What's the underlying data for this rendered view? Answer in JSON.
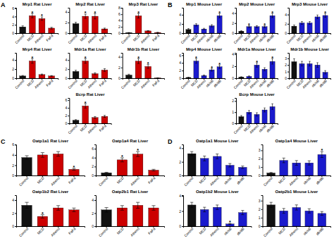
{
  "chart_data": [
    {
      "type": "bar",
      "title": "Mrp1 Rat Liver",
      "categories": [
        "Control",
        "MCD",
        "Athens",
        "FaFa"
      ],
      "values": [
        1.5,
        4.2,
        3.5,
        1.2
      ],
      "errors": [
        0.25,
        0.5,
        0.4,
        0.2
      ],
      "colors": [
        "#111111",
        "#cc0000",
        "#cc0000",
        "#cc0000"
      ],
      "ylim": [
        0,
        6.11
      ],
      "yticks": [
        0,
        2,
        4,
        6
      ],
      "annotations": [
        {
          "text": "A"
        },
        {
          "text": "*",
          "x": "MCD"
        },
        {
          "text": "*",
          "x": "Athens"
        }
      ]
    },
    {
      "type": "bar",
      "title": "Mrp2 Rat Liver",
      "categories": [
        "Control",
        "MCD",
        "Athens",
        "FaFa"
      ],
      "values": [
        1.8,
        3.2,
        3.2,
        0.8
      ],
      "errors": [
        0.25,
        0.4,
        0.5,
        0.15
      ],
      "colors": [
        "#111111",
        "#cc0000",
        "#cc0000",
        "#cc0000"
      ],
      "ylim": [
        0,
        4.81
      ],
      "yticks": [
        0,
        2,
        4
      ],
      "annotations": [
        {
          "text": "*",
          "x": "MCD"
        },
        {
          "text": "*",
          "x": "Athens"
        }
      ]
    },
    {
      "type": "bar",
      "title": "Mrp3 Rat Liver",
      "categories": [
        "Control",
        "MCD",
        "Athens",
        "FaFa"
      ],
      "values": [
        0.15,
        5.5,
        0.7,
        0.2
      ],
      "errors": [
        0.03,
        0.7,
        0.1,
        0.05
      ],
      "colors": [
        "#111111",
        "#cc0000",
        "#cc0000",
        "#cc0000"
      ],
      "ylim": [
        0,
        8.06
      ],
      "yticks": [
        0,
        2,
        4,
        6,
        8
      ],
      "annotations": [
        {
          "text": "*",
          "x": "MCD"
        }
      ]
    },
    {
      "type": "bar",
      "title": "Mrp4 Rat Liver",
      "categories": [
        "Control",
        "MCD",
        "Athens",
        "FaFa"
      ],
      "values": [
        0.5,
        3.8,
        0.8,
        0.5
      ],
      "errors": [
        0.1,
        0.5,
        0.12,
        0.08
      ],
      "colors": [
        "#111111",
        "#cc0000",
        "#cc0000",
        "#cc0000"
      ],
      "ylim": [
        0,
        5.59
      ],
      "yticks": [
        0,
        2,
        4
      ],
      "annotations": [
        {
          "text": "*",
          "x": "MCD"
        }
      ]
    },
    {
      "type": "bar",
      "title": "Mdr1a Rat Liver",
      "categories": [
        "Control",
        "MCD",
        "Athens",
        "FaFa"
      ],
      "values": [
        1.5,
        3.8,
        1.0,
        1.8
      ],
      "errors": [
        0.25,
        0.5,
        0.2,
        0.3
      ],
      "colors": [
        "#111111",
        "#cc0000",
        "#cc0000",
        "#cc0000"
      ],
      "ylim": [
        0,
        5.59
      ],
      "yticks": [
        0,
        2,
        4
      ],
      "annotations": [
        {
          "text": "*",
          "x": "MCD"
        }
      ]
    },
    {
      "type": "bar",
      "title": "Mdr1b Rat Liver",
      "categories": [
        "Control",
        "MCD",
        "Athens",
        "FaFa"
      ],
      "values": [
        0.6,
        3.2,
        2.2,
        0.05
      ],
      "errors": [
        0.15,
        0.45,
        0.35,
        0.02
      ],
      "colors": [
        "#111111",
        "#cc0000",
        "#cc0000",
        "#cc0000"
      ],
      "ylim": [
        0,
        4.745
      ],
      "yticks": [
        0,
        2,
        4
      ],
      "annotations": [
        {
          "text": "*",
          "x": "MCD"
        },
        {
          "text": "*",
          "x": "Athens"
        }
      ]
    },
    {
      "type": "bar",
      "title": "Bcrp Rat Liver",
      "categories": [
        "Control",
        "MCD",
        "Athens",
        "FaFa"
      ],
      "values": [
        0.8,
        4.5,
        1.5,
        1.8
      ],
      "errors": [
        0.15,
        0.55,
        0.25,
        0.25
      ],
      "colors": [
        "#111111",
        "#cc0000",
        "#cc0000",
        "#cc0000"
      ],
      "ylim": [
        0,
        6.565
      ],
      "yticks": [
        0,
        2,
        4,
        6
      ],
      "annotations": [
        {
          "text": "*",
          "x": "MCD"
        }
      ]
    },
    {
      "type": "bar",
      "title": "Mrp1 Mouse Liver",
      "categories": [
        "Control",
        "MCD",
        "Athens",
        "ob/ob",
        "db/db"
      ],
      "values": [
        0.8,
        1.8,
        0.9,
        1.6,
        3.8
      ],
      "errors": [
        0.2,
        0.25,
        0.15,
        0.25,
        0.45
      ],
      "colors": [
        "#111111",
        "#1a1acc",
        "#1a1acc",
        "#1a1acc",
        "#1a1acc"
      ],
      "ylim": [
        0,
        5.525
      ],
      "yticks": [
        0,
        2,
        4
      ],
      "annotations": [
        {
          "text": "B"
        },
        {
          "text": "*",
          "x": "db/db"
        }
      ]
    },
    {
      "type": "bar",
      "title": "Mrp2 Mouse Liver",
      "categories": [
        "Control",
        "MCD",
        "Athens",
        "ob/ob",
        "db/db"
      ],
      "values": [
        0.4,
        1.3,
        1.3,
        1.3,
        3.5
      ],
      "errors": [
        0.08,
        0.2,
        0.2,
        0.2,
        0.4
      ],
      "colors": [
        "#111111",
        "#1a1acc",
        "#1a1acc",
        "#1a1acc",
        "#1a1acc"
      ],
      "ylim": [
        0,
        5.07
      ],
      "yticks": [
        0,
        2,
        4
      ],
      "annotations": [
        {
          "text": "*",
          "x": "MCD"
        },
        {
          "text": "*",
          "x": "ob/ob"
        },
        {
          "text": "*",
          "x": "db/db"
        }
      ]
    },
    {
      "type": "bar",
      "title": "Mrp3 Mouse Liver",
      "categories": [
        "Control",
        "MCD",
        "Athens",
        "ob/ob",
        "db/db"
      ],
      "values": [
        1.5,
        2.2,
        2.2,
        3.5,
        3.8
      ],
      "errors": [
        0.25,
        0.3,
        0.3,
        0.4,
        0.4
      ],
      "colors": [
        "#111111",
        "#1a1acc",
        "#1a1acc",
        "#1a1acc",
        "#1a1acc"
      ],
      "ylim": [
        0,
        5.46
      ],
      "yticks": [
        0,
        2,
        4
      ],
      "annotations": [
        {
          "text": "*",
          "x": "db/db"
        }
      ]
    },
    {
      "type": "bar",
      "title": "Mrp4 Mouse Liver",
      "categories": [
        "Control",
        "MCD",
        "Athens",
        "ob/ob",
        "db/db"
      ],
      "values": [
        0.2,
        4.5,
        0.7,
        2.2,
        3.0
      ],
      "errors": [
        0.05,
        0.6,
        0.15,
        0.35,
        0.45
      ],
      "colors": [
        "#111111",
        "#1a1acc",
        "#1a1acc",
        "#1a1acc",
        "#1a1acc"
      ],
      "ylim": [
        0,
        6.63
      ],
      "yticks": [
        0,
        2,
        4,
        6
      ],
      "annotations": [
        {
          "text": "*",
          "x": "MCD"
        },
        {
          "text": "*",
          "x": "ob/ob"
        },
        {
          "text": "*",
          "x": "db/db"
        }
      ]
    },
    {
      "type": "bar",
      "title": "Mdr1a Mouse Liver",
      "categories": [
        "Control",
        "MCD",
        "Athens",
        "ob/ob",
        "db/db"
      ],
      "values": [
        0.2,
        0.3,
        2.2,
        1.5,
        2.8
      ],
      "errors": [
        0.05,
        0.08,
        0.35,
        0.25,
        0.45
      ],
      "colors": [
        "#111111",
        "#1a1acc",
        "#1a1acc",
        "#1a1acc",
        "#1a1acc"
      ],
      "ylim": [
        0,
        4.225
      ],
      "yticks": [
        0,
        2,
        4
      ],
      "annotations": [
        {
          "text": "*",
          "x": "Athens"
        },
        {
          "text": "*",
          "x": "db/db"
        }
      ]
    },
    {
      "type": "bar",
      "title": "Mdr1b Mouse Liver",
      "categories": [
        "Control",
        "MCD",
        "Athens",
        "ob/ob",
        "db/db"
      ],
      "values": [
        2.5,
        2.2,
        2.2,
        2.0,
        0.9
      ],
      "errors": [
        0.45,
        0.35,
        0.35,
        0.35,
        0.25
      ],
      "colors": [
        "#111111",
        "#1a1acc",
        "#1a1acc",
        "#1a1acc",
        "#1a1acc"
      ],
      "ylim": [
        0,
        3.835
      ],
      "yticks": [
        0,
        1,
        2,
        3
      ]
    },
    {
      "type": "bar",
      "title": "Bcrp Mouse Liver",
      "categories": [
        "Control",
        "MCD",
        "Athens",
        "ob/ob",
        "db/db"
      ],
      "values": [
        0.6,
        1.0,
        0.8,
        1.2,
        1.5
      ],
      "errors": [
        0.1,
        0.15,
        0.15,
        0.18,
        0.25
      ],
      "colors": [
        "#111111",
        "#1a1acc",
        "#1a1acc",
        "#1a1acc",
        "#1a1acc"
      ],
      "ylim": [
        0,
        2.275
      ],
      "yticks": [
        0,
        1,
        2
      ]
    },
    {
      "type": "bar",
      "title": "Oatp1a1 Rat Liver",
      "categories": [
        "Control",
        "MCD",
        "Athens",
        "FaFa"
      ],
      "values": [
        3.5,
        4.0,
        4.2,
        1.2
      ],
      "errors": [
        0.35,
        0.45,
        0.45,
        0.18
      ],
      "colors": [
        "#111111",
        "#cc0000",
        "#cc0000",
        "#cc0000"
      ],
      "ylim": [
        0,
        6.045
      ],
      "yticks": [
        0,
        2,
        4,
        6
      ],
      "annotations": [
        {
          "text": "C"
        },
        {
          "text": "*",
          "x": "FaFa"
        }
      ]
    },
    {
      "type": "bar",
      "title": "Oatp1a4 Rat Liver",
      "categories": [
        "Control",
        "MCD",
        "Athens",
        "FaFa"
      ],
      "values": [
        0.6,
        3.5,
        4.8,
        1.2
      ],
      "errors": [
        0.12,
        0.45,
        0.55,
        0.18
      ],
      "colors": [
        "#111111",
        "#cc0000",
        "#cc0000",
        "#cc0000"
      ],
      "ylim": [
        0,
        6.955
      ],
      "yticks": [
        0,
        2,
        4,
        6
      ],
      "annotations": [
        {
          "text": "*",
          "x": "MCD"
        },
        {
          "text": "*",
          "x": "Athens"
        }
      ]
    },
    {
      "type": "bar",
      "title": "Oatp1b2 Rat Liver",
      "categories": [
        "Control",
        "MCD",
        "Athens",
        "FaFa"
      ],
      "values": [
        3.2,
        1.5,
        2.8,
        2.5
      ],
      "errors": [
        0.45,
        0.25,
        0.35,
        0.28
      ],
      "colors": [
        "#111111",
        "#cc0000",
        "#cc0000",
        "#cc0000"
      ],
      "ylim": [
        0,
        4.745
      ],
      "yticks": [
        0,
        2,
        4
      ],
      "annotations": [
        {
          "text": "*",
          "x": "MCD"
        }
      ]
    },
    {
      "type": "bar",
      "title": "Oatp2b1 Rat Liver",
      "categories": [
        "Control",
        "MCD",
        "Athens",
        "FaFa"
      ],
      "values": [
        2.5,
        2.8,
        3.2,
        2.8
      ],
      "errors": [
        0.35,
        0.35,
        0.45,
        0.35
      ],
      "colors": [
        "#111111",
        "#cc0000",
        "#cc0000",
        "#cc0000"
      ],
      "ylim": [
        0,
        4.745
      ],
      "yticks": [
        0,
        2,
        4
      ]
    },
    {
      "type": "bar",
      "title": "Oatp1a1 Mouse Liver",
      "categories": [
        "Control",
        "MCD",
        "Athens",
        "ob/ob",
        "db/db"
      ],
      "values": [
        3.2,
        2.5,
        2.8,
        1.5,
        1.2
      ],
      "errors": [
        0.3,
        0.35,
        0.35,
        0.25,
        0.18
      ],
      "colors": [
        "#111111",
        "#1a1acc",
        "#1a1acc",
        "#1a1acc",
        "#1a1acc"
      ],
      "ylim": [
        0,
        4.55
      ],
      "yticks": [
        0,
        2,
        4
      ],
      "annotations": [
        {
          "text": "D"
        }
      ]
    },
    {
      "type": "bar",
      "title": "Oatp1a4 Mouse Liver",
      "categories": [
        "Control",
        "MCD",
        "Athens",
        "ob/ob",
        "db/db"
      ],
      "values": [
        0.3,
        1.8,
        1.5,
        1.5,
        2.5
      ],
      "errors": [
        0.06,
        0.28,
        0.28,
        0.25,
        0.35
      ],
      "colors": [
        "#111111",
        "#1a1acc",
        "#1a1acc",
        "#1a1acc",
        "#1a1acc"
      ],
      "ylim": [
        0,
        3.705
      ],
      "yticks": [
        0,
        1,
        2,
        3
      ],
      "annotations": [
        {
          "text": "*",
          "x": "db/db"
        }
      ]
    },
    {
      "type": "bar",
      "title": "Oatp1b2 Mouse Liver",
      "categories": [
        "Control",
        "MCD",
        "Athens",
        "ob/ob",
        "db/db"
      ],
      "values": [
        2.8,
        2.2,
        2.5,
        0.3,
        1.8
      ],
      "errors": [
        0.35,
        0.3,
        0.3,
        0.06,
        0.28
      ],
      "colors": [
        "#111111",
        "#1a1acc",
        "#1a1acc",
        "#1a1acc",
        "#1a1acc"
      ],
      "ylim": [
        0,
        4.095
      ],
      "yticks": [
        0,
        2,
        4
      ],
      "annotations": [
        {
          "text": "*",
          "x": "ob/ob"
        }
      ]
    },
    {
      "type": "bar",
      "title": "Oatp2b1 Mouse Liver",
      "categories": [
        "Control",
        "MCD",
        "Athens",
        "ob/ob",
        "db/db"
      ],
      "values": [
        2.5,
        1.8,
        2.2,
        1.8,
        1.5
      ],
      "errors": [
        0.3,
        0.28,
        0.3,
        0.25,
        0.22
      ],
      "colors": [
        "#111111",
        "#1a1acc",
        "#1a1acc",
        "#1a1acc",
        "#1a1acc"
      ],
      "ylim": [
        0,
        3.64
      ],
      "yticks": [
        0,
        1,
        2,
        3
      ]
    }
  ]
}
